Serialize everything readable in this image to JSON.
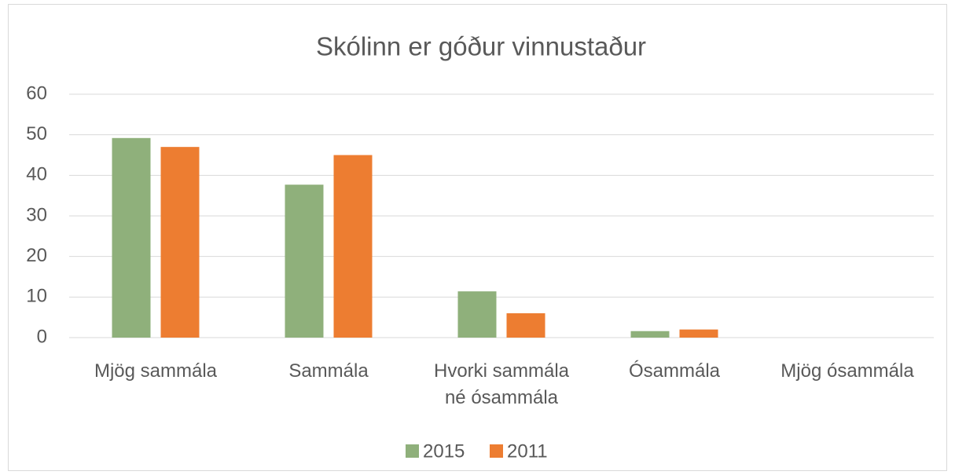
{
  "chart_data": {
    "type": "bar",
    "title": "Skólinn er góður vinnustaður",
    "categories": [
      "Mjög sammála",
      "Sammála",
      "Hvorki sammála né ósammála",
      "Ósammála",
      "Mjög ósammála"
    ],
    "series": [
      {
        "name": "2015",
        "color": "#8fb07b",
        "values": [
          49.2,
          37.7,
          11.4,
          1.6,
          0
        ]
      },
      {
        "name": "2011",
        "color": "#ed7d31",
        "values": [
          47,
          45,
          6,
          2,
          0
        ]
      }
    ],
    "ylim": [
      0,
      60
    ],
    "yticks": [
      0,
      10,
      20,
      30,
      40,
      50,
      60
    ],
    "grid": true,
    "legend": "bottom"
  }
}
